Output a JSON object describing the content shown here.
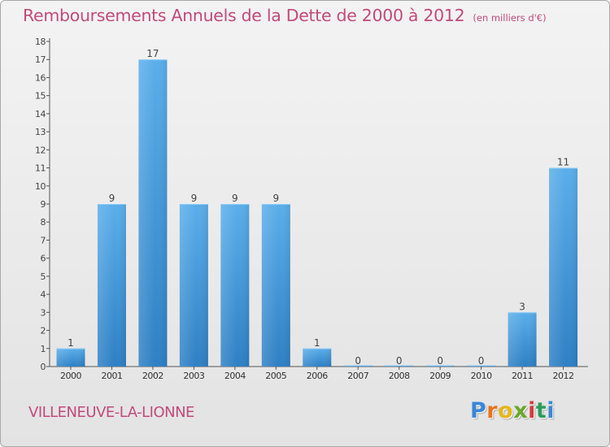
{
  "header": {
    "title": "Remboursements Annuels de la Dette de 2000 à 2012",
    "unit": "(en milliers d'€)"
  },
  "commune": "VILLENEUVE-LA-LIONNE",
  "logo": {
    "text": "Proxiti",
    "letters": [
      "P",
      "r",
      "o",
      "x",
      "i",
      "t",
      "i"
    ]
  },
  "colors": {
    "bar_top": "#5aaeea",
    "bar_bottom": "#2e7fc4",
    "title": "#c24a7a",
    "axis": "#555555"
  },
  "chart_data": {
    "type": "bar",
    "categories": [
      "2000",
      "2001",
      "2002",
      "2003",
      "2004",
      "2005",
      "2006",
      "2007",
      "2008",
      "2009",
      "2010",
      "2011",
      "2012"
    ],
    "values": [
      1,
      9,
      17,
      9,
      9,
      9,
      1,
      0,
      0,
      0,
      0,
      3,
      11
    ],
    "data_labels": [
      "1",
      "9",
      "17",
      "9",
      "9",
      "9",
      "1",
      "0",
      "0",
      "0",
      "0",
      "3",
      "11"
    ],
    "yticks": [
      "0",
      "1",
      "2",
      "3",
      "4",
      "5",
      "6",
      "7",
      "8",
      "9",
      "10",
      "11",
      "12",
      "13",
      "14",
      "15",
      "16",
      "17",
      "18"
    ],
    "ylim": [
      0,
      18
    ],
    "grid": false,
    "legend": "none"
  }
}
